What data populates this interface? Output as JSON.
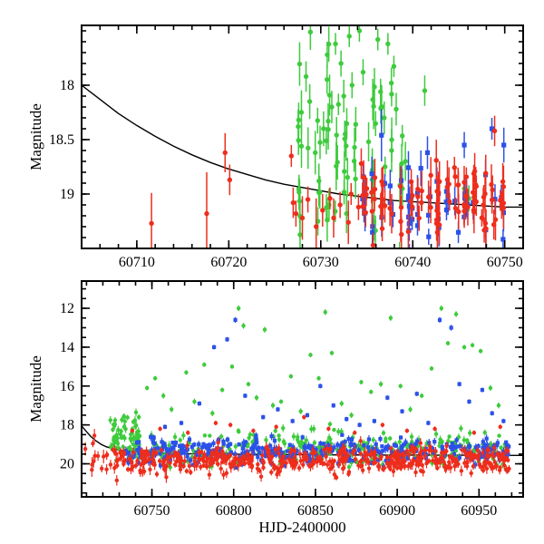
{
  "figure": {
    "background": "#ffffff",
    "frame_color": "#000000",
    "text_color": "#000000"
  },
  "chart_data": [
    {
      "type": "scatter",
      "panel": "top",
      "xlabel": "",
      "ylabel": "Magnitude",
      "x_unit": "HJD-2400000",
      "y_inverted": true,
      "xlim": [
        60704,
        60752
      ],
      "ylim": [
        17.45,
        19.5
      ],
      "xticks": [
        60710,
        60720,
        60730,
        60740,
        60750
      ],
      "x_minor_step": 2,
      "yticks": [
        18,
        18.5,
        19
      ],
      "y_minor_step": 0.1,
      "grid": false,
      "legend": "none",
      "model_curve": {
        "name": "decline-model",
        "color": "#000000",
        "points": [
          [
            60704,
            18.0
          ],
          [
            60706,
            18.13
          ],
          [
            60708,
            18.26
          ],
          [
            60710,
            18.37
          ],
          [
            60712,
            18.47
          ],
          [
            60714,
            18.56
          ],
          [
            60716,
            18.64
          ],
          [
            60718,
            18.71
          ],
          [
            60720,
            18.77
          ],
          [
            60722,
            18.82
          ],
          [
            60724,
            18.87
          ],
          [
            60726,
            18.91
          ],
          [
            60728,
            18.94
          ],
          [
            60730,
            18.97
          ],
          [
            60732,
            19.0
          ],
          [
            60734,
            19.02
          ],
          [
            60736,
            19.04
          ],
          [
            60738,
            19.06
          ],
          [
            60740,
            19.07
          ],
          [
            60742,
            19.08
          ],
          [
            60744,
            19.09
          ],
          [
            60746,
            19.1
          ],
          [
            60748,
            19.11
          ],
          [
            60750,
            19.12
          ],
          [
            60752,
            19.12
          ]
        ]
      },
      "series": [
        {
          "name": "green",
          "color": "#3ecb3c",
          "marker": "circle",
          "points": [
            [
              60727.6,
              18.32,
              0.16
            ],
            [
              60727.9,
              18.56,
              0.2
            ],
            [
              60728.4,
              17.92,
              0.14
            ],
            [
              60728.8,
              18.15,
              0.16
            ],
            [
              60729.4,
              18.62,
              0.2
            ],
            [
              60729.8,
              18.88,
              0.16
            ],
            [
              60730.3,
              18.4,
              0.16
            ],
            [
              60730.7,
              17.72,
              0.12
            ],
            [
              60730.9,
              19.1,
              0.15
            ],
            [
              60731.2,
              18.2,
              0.15
            ],
            [
              60731.6,
              17.62,
              0.1
            ],
            [
              60732.2,
              17.8,
              0.12
            ],
            [
              60732.5,
              18.1,
              0.15
            ],
            [
              60732.8,
              19.18,
              0.18
            ],
            [
              60733.1,
              17.55,
              0.1
            ],
            [
              60733.4,
              18.0,
              0.12
            ],
            [
              60733.8,
              18.36,
              0.16
            ],
            [
              60734.2,
              17.5,
              0.1
            ],
            [
              60734.6,
              17.88,
              0.12
            ],
            [
              60735.2,
              18.52,
              0.18
            ],
            [
              60735.6,
              18.78,
              0.2
            ],
            [
              60736.2,
              17.58,
              0.1
            ],
            [
              60736.5,
              18.06,
              0.12
            ],
            [
              60736.9,
              18.3,
              0.15
            ],
            [
              60737.3,
              17.62,
              0.1
            ],
            [
              60737.7,
              18.6,
              0.2
            ],
            [
              60738.2,
              18.22,
              0.15
            ],
            [
              60738.6,
              18.92,
              0.2
            ],
            [
              60739.2,
              18.7,
              0.18
            ],
            [
              60741.3,
              18.05,
              0.14
            ],
            [
              60745.6,
              18.95,
              0.12
            ],
            [
              60746.1,
              19.04,
              0.12
            ]
          ],
          "clusters": [
            {
              "x_min": 60727.5,
              "x_max": 60739.5,
              "mag_mean": 18.5,
              "mag_sigma": 0.45,
              "err_mean": 0.15,
              "count": 60,
              "nightly": true
            }
          ]
        },
        {
          "name": "blue",
          "color": "#2b51e8",
          "marker": "square",
          "points": [
            [
              60734.6,
              18.84,
              0.12
            ],
            [
              60736.6,
              18.46,
              0.24
            ],
            [
              60741.6,
              18.62,
              0.15
            ],
            [
              60745.6,
              18.55,
              0.12
            ],
            [
              60748.6,
              18.4,
              0.1
            ],
            [
              60749.9,
              18.55,
              0.16
            ]
          ],
          "clusters": [
            {
              "x_min": 60734.5,
              "x_max": 60750.5,
              "mag_mean": 19.08,
              "mag_sigma": 0.16,
              "err_mean": 0.12,
              "count": 55,
              "nightly": true
            }
          ]
        },
        {
          "name": "red",
          "color": "#ee2d1c",
          "marker": "circle",
          "points": [
            [
              60711.6,
              19.27,
              0.28
            ],
            [
              60717.6,
              19.18,
              0.38
            ],
            [
              60719.6,
              18.62,
              0.18
            ],
            [
              60720.1,
              18.87,
              0.14
            ],
            [
              60726.8,
              18.65,
              0.1
            ],
            [
              60727.0,
              19.08,
              0.14
            ],
            [
              60727.3,
              19.18,
              0.12
            ],
            [
              60728.0,
              19.22,
              0.2
            ],
            [
              60728.6,
              19.05,
              0.12
            ],
            [
              60729.5,
              19.3,
              0.26
            ],
            [
              60730.2,
              19.15,
              0.15
            ],
            [
              60731.0,
              19.04,
              0.1
            ],
            [
              60731.4,
              19.22,
              0.18
            ],
            [
              60732.1,
              19.1,
              0.12
            ],
            [
              60733.0,
              19.26,
              0.2
            ],
            [
              60733.3,
              19.0,
              0.1
            ],
            [
              60734.1,
              19.12,
              0.12
            ],
            [
              60734.4,
              18.72,
              0.14
            ],
            [
              60735.0,
              18.95,
              0.1
            ],
            [
              60748.9,
              18.42,
              0.14
            ]
          ],
          "clusters": [
            {
              "x_min": 60734.5,
              "x_max": 60750.5,
              "mag_mean": 19.08,
              "mag_sigma": 0.15,
              "err_mean": 0.13,
              "count": 95,
              "nightly": true
            }
          ]
        }
      ]
    },
    {
      "type": "scatter",
      "panel": "bottom",
      "xlabel": "HJD-2400000",
      "ylabel": "Magnitude",
      "x_unit": "HJD-2400000",
      "y_inverted": true,
      "xlim": [
        60707,
        60977
      ],
      "ylim": [
        10.6,
        21.7
      ],
      "xticks": [
        60750,
        60800,
        60850,
        60900,
        60950
      ],
      "x_minor_step": 10,
      "yticks": [
        12,
        14,
        16,
        18,
        20
      ],
      "y_minor_step": 0.5,
      "grid": false,
      "legend": "none",
      "model_curve": {
        "name": "decline-model",
        "color": "#000000",
        "points": [
          [
            60707,
            18.05
          ],
          [
            60710,
            18.35
          ],
          [
            60713,
            18.62
          ],
          [
            60716,
            18.83
          ],
          [
            60719,
            19.0
          ],
          [
            60722,
            19.12
          ],
          [
            60726,
            19.22
          ],
          [
            60730,
            19.3
          ],
          [
            60736,
            19.36
          ],
          [
            60744,
            19.41
          ],
          [
            60755,
            19.45
          ],
          [
            60770,
            19.48
          ],
          [
            60790,
            19.5
          ],
          [
            60820,
            19.52
          ],
          [
            60860,
            19.54
          ],
          [
            60900,
            19.55
          ],
          [
            60940,
            19.56
          ],
          [
            60977,
            19.57
          ]
        ]
      },
      "series": [
        {
          "name": "green",
          "color": "#3ecb3c",
          "marker": "circle",
          "points": [
            [
              60742,
              17.6,
              0.15
            ],
            [
              60747,
              16.1,
              0.12
            ],
            [
              60752,
              15.6,
              0.12
            ],
            [
              60757,
              16.5,
              0.15
            ],
            [
              60762,
              17.2,
              0.15
            ],
            [
              60771,
              15.3,
              0.12
            ],
            [
              60776,
              16.8,
              0.15
            ],
            [
              60782,
              14.9,
              0.12
            ],
            [
              60787,
              17.4,
              0.15
            ],
            [
              60793,
              16.2,
              0.12
            ],
            [
              60799,
              15.0,
              0.12
            ],
            [
              60803,
              12.0,
              0.15
            ],
            [
              60806,
              12.9,
              0.15
            ],
            [
              60809,
              15.9,
              0.12
            ],
            [
              60814,
              16.6,
              0.15
            ],
            [
              60819,
              13.1,
              0.15
            ],
            [
              60824,
              17.0,
              0.15
            ],
            [
              60829,
              16.8,
              0.12
            ],
            [
              60835,
              15.5,
              0.12
            ],
            [
              60841,
              17.3,
              0.15
            ],
            [
              60847,
              14.4,
              0.12
            ],
            [
              60852,
              15.6,
              0.12
            ],
            [
              60856,
              12.2,
              0.15
            ],
            [
              60860,
              14.3,
              0.12
            ],
            [
              60866,
              16.9,
              0.15
            ],
            [
              60872,
              17.5,
              0.15
            ],
            [
              60878,
              15.8,
              0.12
            ],
            [
              60884,
              16.3,
              0.12
            ],
            [
              60890,
              15.9,
              0.15
            ],
            [
              60896,
              12.5,
              0.15
            ],
            [
              60902,
              16.0,
              0.12
            ],
            [
              60908,
              17.2,
              0.15
            ],
            [
              60915,
              16.5,
              0.12
            ],
            [
              60921,
              15.1,
              0.12
            ],
            [
              60927,
              12.0,
              0.15
            ],
            [
              60931,
              13.8,
              0.12
            ],
            [
              60936,
              12.3,
              0.15
            ],
            [
              60941,
              14.0,
              0.12
            ],
            [
              60946,
              13.9,
              0.12
            ],
            [
              60951,
              14.2,
              0.12
            ],
            [
              60957,
              16.1,
              0.15
            ],
            [
              60962,
              17.0,
              0.15
            ]
          ],
          "clusters": [
            {
              "x_min": 60724,
              "x_max": 60742,
              "mag_mean": 18.45,
              "mag_sigma": 0.5,
              "err_mean": 0.15,
              "count": 50
            },
            {
              "x_min": 60724,
              "x_max": 60967,
              "mag_mean": 19.15,
              "mag_sigma": 0.45,
              "err_mean": 0.15,
              "count": 300
            }
          ]
        },
        {
          "name": "blue",
          "color": "#2b51e8",
          "marker": "square",
          "points": [
            [
              60758,
              18.1,
              0.12
            ],
            [
              60768,
              17.9,
              0.12
            ],
            [
              60779,
              16.9,
              0.12
            ],
            [
              60788,
              14.0,
              0.12
            ],
            [
              60796,
              13.6,
              0.12
            ],
            [
              60801,
              12.6,
              0.15
            ],
            [
              60807,
              16.5,
              0.12
            ],
            [
              60818,
              17.6,
              0.12
            ],
            [
              60827,
              17.2,
              0.12
            ],
            [
              60836,
              17.8,
              0.12
            ],
            [
              60845,
              17.5,
              0.12
            ],
            [
              60853,
              16.0,
              0.12
            ],
            [
              60861,
              17.0,
              0.12
            ],
            [
              60869,
              17.7,
              0.12
            ],
            [
              60877,
              18.0,
              0.12
            ],
            [
              60886,
              17.8,
              0.12
            ],
            [
              60894,
              16.6,
              0.12
            ],
            [
              60903,
              17.3,
              0.12
            ],
            [
              60912,
              16.4,
              0.12
            ],
            [
              60919,
              17.9,
              0.12
            ],
            [
              60926,
              12.6,
              0.15
            ],
            [
              60933,
              13.0,
              0.15
            ],
            [
              60938,
              15.9,
              0.12
            ],
            [
              60944,
              16.8,
              0.12
            ],
            [
              60952,
              16.2,
              0.12
            ],
            [
              60958,
              17.4,
              0.12
            ],
            [
              60965,
              17.8,
              0.12
            ]
          ],
          "clusters": [
            {
              "x_min": 60734,
              "x_max": 60969,
              "mag_mean": 19.35,
              "mag_sigma": 0.3,
              "err_mean": 0.15,
              "count": 400
            }
          ]
        },
        {
          "name": "red",
          "color": "#ee2d1c",
          "marker": "circle",
          "points": [
            [
              60738,
              18.3,
              0.12
            ],
            [
              60755,
              18.2,
              0.12
            ],
            [
              60772,
              18.4,
              0.12
            ],
            [
              60789,
              17.9,
              0.12
            ],
            [
              60798,
              18.0,
              0.12
            ],
            [
              60812,
              18.3,
              0.12
            ],
            [
              60826,
              18.1,
              0.12
            ],
            [
              60843,
              17.6,
              0.12
            ],
            [
              60858,
              18.2,
              0.12
            ],
            [
              60874,
              18.4,
              0.12
            ],
            [
              60891,
              18.0,
              0.12
            ],
            [
              60906,
              18.3,
              0.12
            ],
            [
              60923,
              18.2,
              0.12
            ],
            [
              60947,
              18.4,
              0.12
            ],
            [
              60963,
              18.1,
              0.12
            ]
          ],
          "clusters": [
            {
              "x_min": 60709,
              "x_max": 60722,
              "mag_mean": 19.6,
              "mag_sigma": 0.45,
              "err_mean": 0.3,
              "count": 10
            },
            {
              "x_min": 60722,
              "x_max": 60969,
              "mag_mean": 19.8,
              "mag_sigma": 0.33,
              "err_mean": 0.2,
              "count": 520
            }
          ]
        }
      ]
    }
  ]
}
